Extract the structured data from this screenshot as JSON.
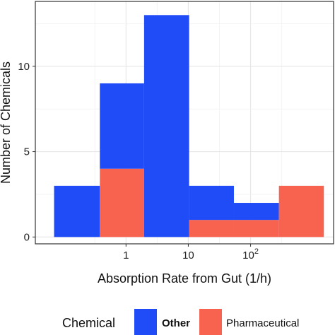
{
  "chart_data": {
    "type": "bar",
    "subtype": "stacked-histogram",
    "title": "",
    "xlabel": "Absorption Rate from Gut (1/h)",
    "ylabel": "Number of Chemicals",
    "x_scale": "log10",
    "xlim": [
      0.035,
      2150
    ],
    "ylim": [
      -0.4,
      13.8
    ],
    "x_tick_values": [
      1,
      10,
      100
    ],
    "x_tick_labels": [
      {
        "base": "1",
        "exp": ""
      },
      {
        "base": "10",
        "exp": ""
      },
      {
        "base": "10",
        "exp": "2"
      }
    ],
    "y_ticks": [
      0,
      5,
      10
    ],
    "y_tick_labels": [
      "0",
      "5",
      "10"
    ],
    "grid": true,
    "legend": {
      "position": "bottom",
      "title": "Chemical",
      "entries": [
        {
          "key": "other",
          "label": "Other",
          "bold": true
        },
        {
          "key": "pharma",
          "label": "Pharmaceutical",
          "bold": false
        }
      ]
    },
    "bins": [
      {
        "x0": 0.07,
        "x1": 0.38
      },
      {
        "x0": 0.38,
        "x1": 1.95
      },
      {
        "x0": 1.95,
        "x1": 10.3
      },
      {
        "x0": 10.3,
        "x1": 54
      },
      {
        "x0": 54,
        "x1": 285
      },
      {
        "x0": 285,
        "x1": 1500
      }
    ],
    "series": [
      {
        "name": "Pharmaceutical",
        "key": "pharma",
        "color": "#f8634f",
        "values": [
          0,
          4,
          0,
          1,
          1,
          3
        ]
      },
      {
        "name": "Other",
        "key": "other",
        "color": "#1f4cf6",
        "values": [
          3,
          5,
          13,
          2,
          1,
          0
        ]
      }
    ]
  }
}
